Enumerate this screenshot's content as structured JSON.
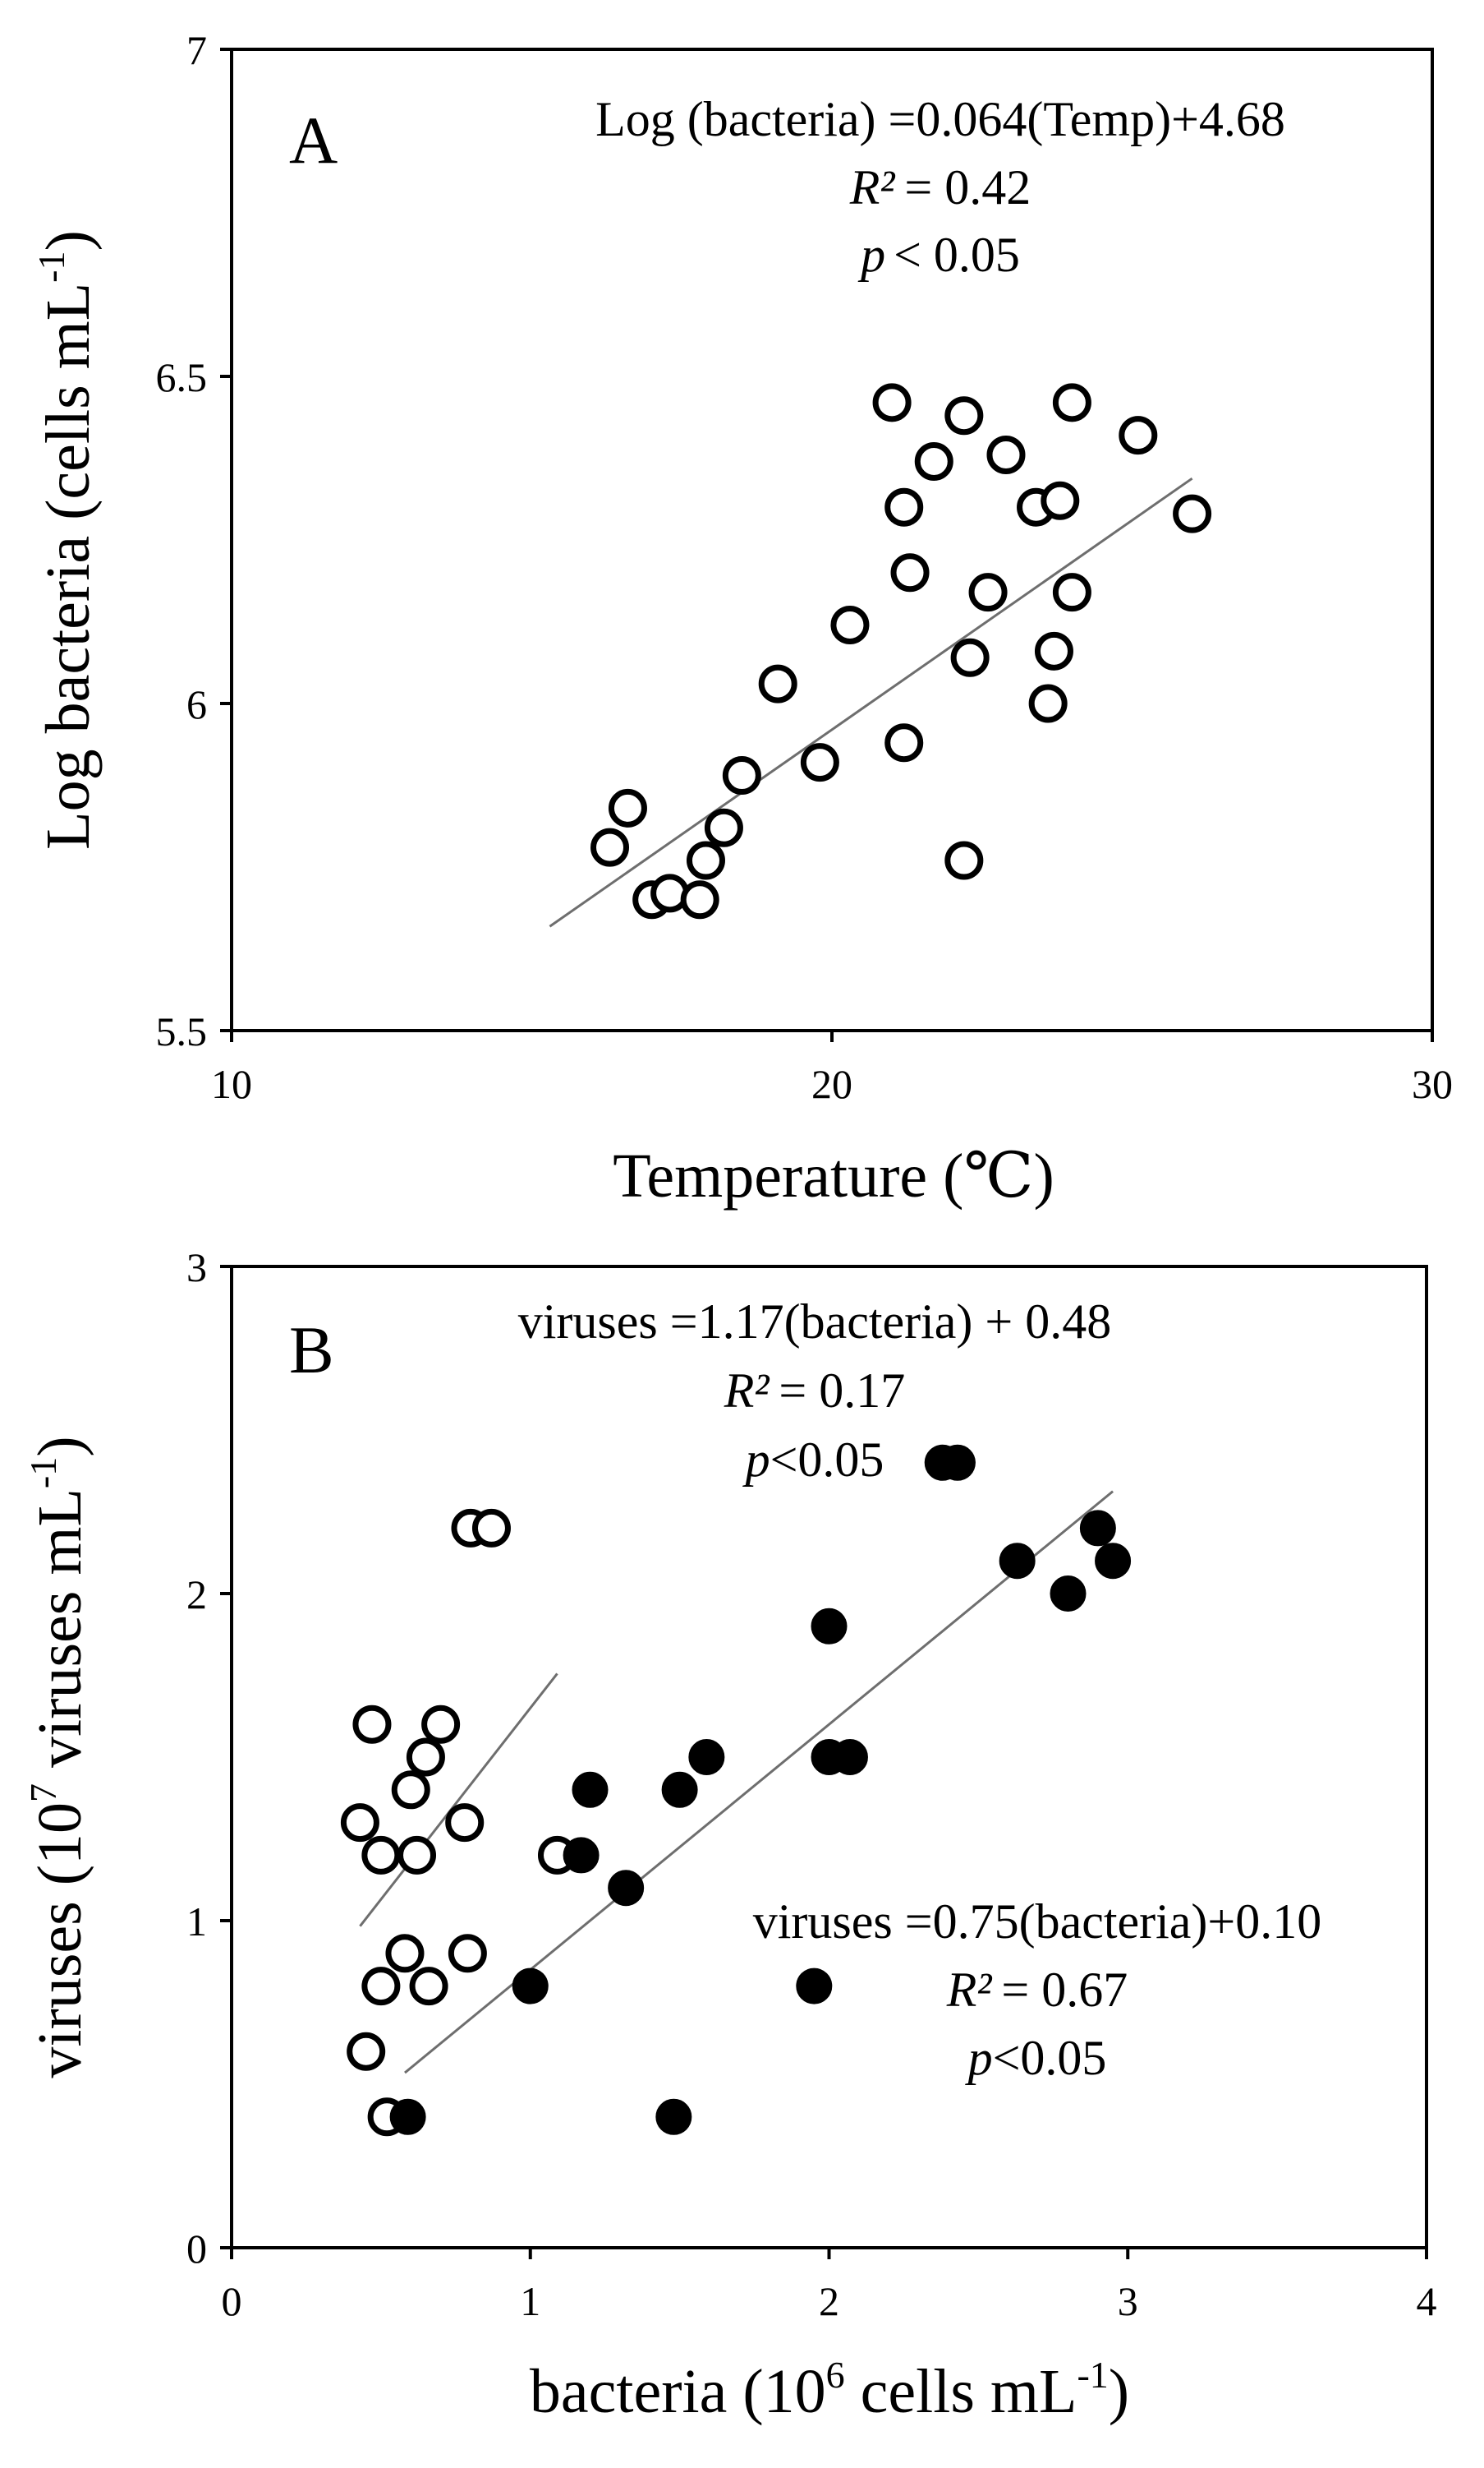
{
  "chart_data": [
    {
      "type": "scatter",
      "panel_label": "A",
      "xlabel": "Temperature (℃)",
      "ylabel_parts": [
        "Log bacteria (cells mL",
        "-1",
        ")"
      ],
      "xlim": [
        10,
        30
      ],
      "ylim": [
        5.5,
        7
      ],
      "xticks": [
        10,
        20,
        30
      ],
      "yticks": [
        5.5,
        6,
        6.5,
        7
      ],
      "ytick_labels": [
        "5.5",
        "6",
        "6.5",
        "7"
      ],
      "annotation": {
        "equation": "Log (bacteria) =0.064(Temp)+4.68",
        "r2_symbol": "R²",
        "r2_value": "= 0.42",
        "p_symbol": "p",
        "p_value": "< 0.05"
      },
      "series": [
        {
          "name": "samples",
          "marker": "open",
          "points": [
            [
              16.3,
              5.78
            ],
            [
              16.6,
              5.84
            ],
            [
              17.0,
              5.7
            ],
            [
              17.3,
              5.71
            ],
            [
              17.8,
              5.7
            ],
            [
              17.9,
              5.76
            ],
            [
              18.2,
              5.81
            ],
            [
              18.5,
              5.89
            ],
            [
              19.1,
              6.03
            ],
            [
              19.8,
              5.91
            ],
            [
              20.3,
              6.12
            ],
            [
              21.0,
              6.46
            ],
            [
              21.2,
              6.3
            ],
            [
              21.3,
              6.2
            ],
            [
              21.2,
              5.94
            ],
            [
              21.7,
              6.37
            ],
            [
              22.2,
              6.44
            ],
            [
              22.2,
              5.76
            ],
            [
              22.3,
              6.07
            ],
            [
              22.6,
              6.17
            ],
            [
              22.9,
              6.38
            ],
            [
              23.4,
              6.3
            ],
            [
              23.6,
              6.0
            ],
            [
              23.7,
              6.08
            ],
            [
              23.8,
              6.31
            ],
            [
              24.0,
              6.17
            ],
            [
              24.0,
              6.46
            ],
            [
              25.1,
              6.41
            ],
            [
              26.0,
              6.29
            ]
          ]
        }
      ],
      "fit_lines": [
        {
          "x": [
            15.3,
            26.0
          ],
          "slope": 0.064,
          "intercept": 4.68
        }
      ]
    },
    {
      "type": "scatter",
      "panel_label": "B",
      "xlabel_parts": [
        "bacteria (10",
        "6",
        " cells mL",
        "-1",
        ")"
      ],
      "ylabel_parts": [
        "viruses (10",
        "7",
        " viruses mL",
        "-1",
        ")"
      ],
      "xlim": [
        0,
        4
      ],
      "ylim": [
        0,
        3
      ],
      "xticks": [
        0,
        1,
        2,
        3,
        4
      ],
      "yticks": [
        0,
        1,
        2,
        3
      ],
      "annotations": [
        {
          "equation": "viruses =1.17(bacteria) + 0.48",
          "r2_symbol": "R²",
          "r2_value": "= 0.17",
          "p_symbol": "p",
          "p_value": "<0.05"
        },
        {
          "equation": "viruses =0.75(bacteria)+0.10",
          "r2_symbol": "R²",
          "r2_value": "= 0.67",
          "p_symbol": "p",
          "p_value": "<0.05"
        }
      ],
      "series": [
        {
          "name": "open circles",
          "marker": "open",
          "points": [
            [
              0.43,
              1.3
            ],
            [
              0.45,
              0.6
            ],
            [
              0.47,
              1.6
            ],
            [
              0.5,
              1.2
            ],
            [
              0.5,
              0.8
            ],
            [
              0.52,
              0.4
            ],
            [
              0.58,
              0.9
            ],
            [
              0.6,
              1.4
            ],
            [
              0.62,
              1.2
            ],
            [
              0.65,
              1.5
            ],
            [
              0.66,
              0.8
            ],
            [
              0.7,
              1.6
            ],
            [
              0.78,
              1.3
            ],
            [
              0.79,
              0.9
            ],
            [
              0.8,
              2.2
            ],
            [
              0.87,
              2.2
            ],
            [
              1.09,
              1.2
            ]
          ]
        },
        {
          "name": "filled circles",
          "marker": "filled",
          "points": [
            [
              0.59,
              0.4
            ],
            [
              1.0,
              0.8
            ],
            [
              1.17,
              1.2
            ],
            [
              1.2,
              1.4
            ],
            [
              1.32,
              1.1
            ],
            [
              1.48,
              0.4
            ],
            [
              1.5,
              1.4
            ],
            [
              1.59,
              1.5
            ],
            [
              1.95,
              0.8
            ],
            [
              2.0,
              1.9
            ],
            [
              2.0,
              1.5
            ],
            [
              2.07,
              1.5
            ],
            [
              2.38,
              2.4
            ],
            [
              2.43,
              2.4
            ],
            [
              2.63,
              2.1
            ],
            [
              2.8,
              2.0
            ],
            [
              2.9,
              2.2
            ],
            [
              2.95,
              2.1
            ]
          ]
        }
      ],
      "fit_lines": [
        {
          "x": [
            0.43,
            1.09
          ],
          "slope": 1.17,
          "intercept": 0.48
        },
        {
          "x": [
            0.58,
            2.95
          ],
          "slope": 0.75,
          "intercept": 0.1
        }
      ]
    }
  ]
}
